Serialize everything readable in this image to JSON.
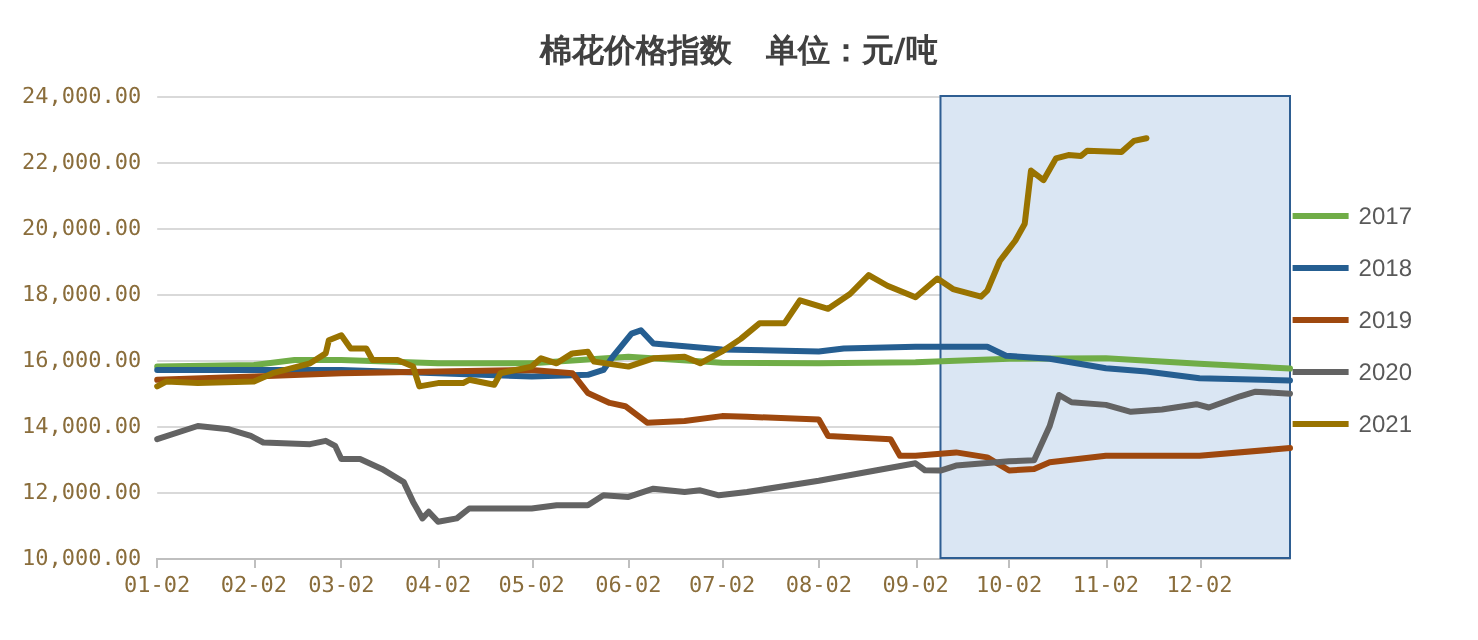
{
  "chart_data": {
    "type": "line",
    "title": "棉花价格指数   单位：元/吨",
    "ylim": [
      10000,
      24000
    ],
    "yticks": [
      {
        "value": 10000,
        "label": "10,000.00"
      },
      {
        "value": 12000,
        "label": "12,000.00"
      },
      {
        "value": 14000,
        "label": "14,000.00"
      },
      {
        "value": 16000,
        "label": "16,000.00"
      },
      {
        "value": 18000,
        "label": "18,000.00"
      },
      {
        "value": 20000,
        "label": "20,000.00"
      },
      {
        "value": 22000,
        "label": "22,000.00"
      },
      {
        "value": 24000,
        "label": "24,000.00"
      }
    ],
    "xlim": [
      "--01-02",
      "--12-31"
    ],
    "xticks": [
      {
        "value": "--01-02",
        "label": "01-02"
      },
      {
        "value": "--02-02",
        "label": "02-02"
      },
      {
        "value": "--03-02",
        "label": "03-02"
      },
      {
        "value": "--04-02",
        "label": "04-02"
      },
      {
        "value": "--05-02",
        "label": "05-02"
      },
      {
        "value": "--06-02",
        "label": "06-02"
      },
      {
        "value": "--07-02",
        "label": "07-02"
      },
      {
        "value": "--08-02",
        "label": "08-02"
      },
      {
        "value": "--09-02",
        "label": "09-02"
      },
      {
        "value": "--10-02",
        "label": "10-02"
      },
      {
        "value": "--11-02",
        "label": "11-02"
      },
      {
        "value": "--12-02",
        "label": "12-02"
      }
    ],
    "grid": "y",
    "legend": "right",
    "marker": "none",
    "bands": [
      {
        "axis": "x",
        "from": "--09-10",
        "to": "--12-31",
        "color": "#dae6f3"
      }
    ],
    "series": [
      {
        "name": "2017",
        "color": "#70ad47",
        "x": [
          "--01-02",
          "--02-02",
          "--02-15",
          "--03-02",
          "--04-02",
          "--05-02",
          "--06-02",
          "--07-02",
          "--08-02",
          "--09-02",
          "--10-02",
          "--11-02",
          "--12-02",
          "--12-31"
        ],
        "values": [
          15800,
          15850,
          16000,
          16000,
          15900,
          15900,
          16100,
          15920,
          15900,
          15930,
          16040,
          16050,
          15890,
          15740
        ]
      },
      {
        "name": "2018",
        "color": "#255e91",
        "x": [
          "--01-02",
          "--02-02",
          "--03-02",
          "--04-02",
          "--05-02",
          "--05-20",
          "--05-25",
          "--05-28",
          "--06-03",
          "--06-06",
          "--06-10",
          "--07-02",
          "--08-02",
          "--08-10",
          "--09-02",
          "--09-25",
          "--10-01",
          "--10-15",
          "--11-02",
          "--11-15",
          "--12-02",
          "--12-31"
        ],
        "values": [
          15700,
          15700,
          15700,
          15600,
          15500,
          15550,
          15700,
          16100,
          16800,
          16900,
          16500,
          16320,
          16260,
          16350,
          16400,
          16400,
          16130,
          16040,
          15750,
          15650,
          15450,
          15380
        ]
      },
      {
        "name": "2019",
        "color": "#9e480e",
        "x": [
          "--01-02",
          "--02-02",
          "--03-02",
          "--04-02",
          "--05-02",
          "--05-15",
          "--05-20",
          "--05-27",
          "--06-01",
          "--06-08",
          "--06-20",
          "--07-02",
          "--07-10",
          "--08-02",
          "--08-05",
          "--08-25",
          "--08-28",
          "--09-02",
          "--09-15",
          "--09-25",
          "--10-02",
          "--10-10",
          "--10-15",
          "--11-02",
          "--12-02",
          "--12-31"
        ],
        "values": [
          15400,
          15500,
          15600,
          15650,
          15700,
          15600,
          15000,
          14700,
          14600,
          14100,
          14150,
          14300,
          14280,
          14200,
          13700,
          13600,
          13100,
          13100,
          13200,
          13050,
          12650,
          12700,
          12900,
          13100,
          13100,
          13330
        ]
      },
      {
        "name": "2020",
        "color": "#636363",
        "x": [
          "--01-02",
          "--01-15",
          "--01-25",
          "--02-01",
          "--02-05",
          "--02-20",
          "--02-25",
          "--02-28",
          "--03-02",
          "--03-08",
          "--03-15",
          "--03-22",
          "--03-25",
          "--03-28",
          "--03-30",
          "--04-02",
          "--04-08",
          "--04-12",
          "--05-02",
          "--05-10",
          "--05-20",
          "--05-25",
          "--06-02",
          "--06-10",
          "--06-20",
          "--06-25",
          "--07-01",
          "--07-10",
          "--08-02",
          "--09-02",
          "--09-05",
          "--09-10",
          "--09-15",
          "--10-02",
          "--10-10",
          "--10-15",
          "--10-18",
          "--10-22",
          "--11-02",
          "--11-10",
          "--11-20",
          "--12-01",
          "--12-05",
          "--12-15",
          "--12-20",
          "--12-31"
        ],
        "values": [
          13600,
          14000,
          13900,
          13700,
          13500,
          13450,
          13550,
          13400,
          13000,
          13000,
          12700,
          12300,
          11700,
          11200,
          11400,
          11100,
          11200,
          11500,
          11500,
          11600,
          11600,
          11900,
          11850,
          12100,
          12000,
          12050,
          11900,
          12000,
          12340,
          12870,
          12660,
          12650,
          12800,
          12930,
          12960,
          14000,
          14940,
          14720,
          14640,
          14430,
          14500,
          14660,
          14560,
          14900,
          15040,
          14980
        ]
      },
      {
        "name": "2021",
        "color": "#997300",
        "x": [
          "--01-02",
          "--01-05",
          "--01-15",
          "--02-02",
          "--02-08",
          "--02-20",
          "--02-25",
          "--02-26",
          "--03-02",
          "--03-05",
          "--03-10",
          "--03-12",
          "--03-20",
          "--03-25",
          "--03-27",
          "--04-02",
          "--04-10",
          "--04-12",
          "--04-20",
          "--04-22",
          "--05-02",
          "--05-05",
          "--05-10",
          "--05-15",
          "--05-20",
          "--05-22",
          "--06-02",
          "--06-10",
          "--06-20",
          "--06-25",
          "--07-02",
          "--07-08",
          "--07-14",
          "--07-22",
          "--07-27",
          "--08-05",
          "--08-12",
          "--08-18",
          "--08-24",
          "--09-02",
          "--09-09",
          "--09-14",
          "--09-23",
          "--09-25",
          "--09-29",
          "--10-04",
          "--10-07",
          "--10-09",
          "--10-13",
          "--10-17",
          "--10-21",
          "--10-25",
          "--10-27",
          "--11-07",
          "--11-11",
          "--11-15"
        ],
        "values": [
          15200,
          15350,
          15300,
          15350,
          15600,
          15900,
          16200,
          16600,
          16750,
          16350,
          16350,
          16000,
          16000,
          15800,
          15200,
          15300,
          15300,
          15400,
          15250,
          15600,
          15800,
          16050,
          15900,
          16200,
          16250,
          15950,
          15800,
          16050,
          16100,
          15900,
          16260,
          16640,
          17110,
          17110,
          17810,
          17550,
          18000,
          18570,
          18250,
          17900,
          18470,
          18150,
          17920,
          18100,
          19000,
          19620,
          20130,
          21740,
          21450,
          22110,
          22210,
          22180,
          22340,
          22300,
          22640,
          22720
        ]
      }
    ]
  }
}
